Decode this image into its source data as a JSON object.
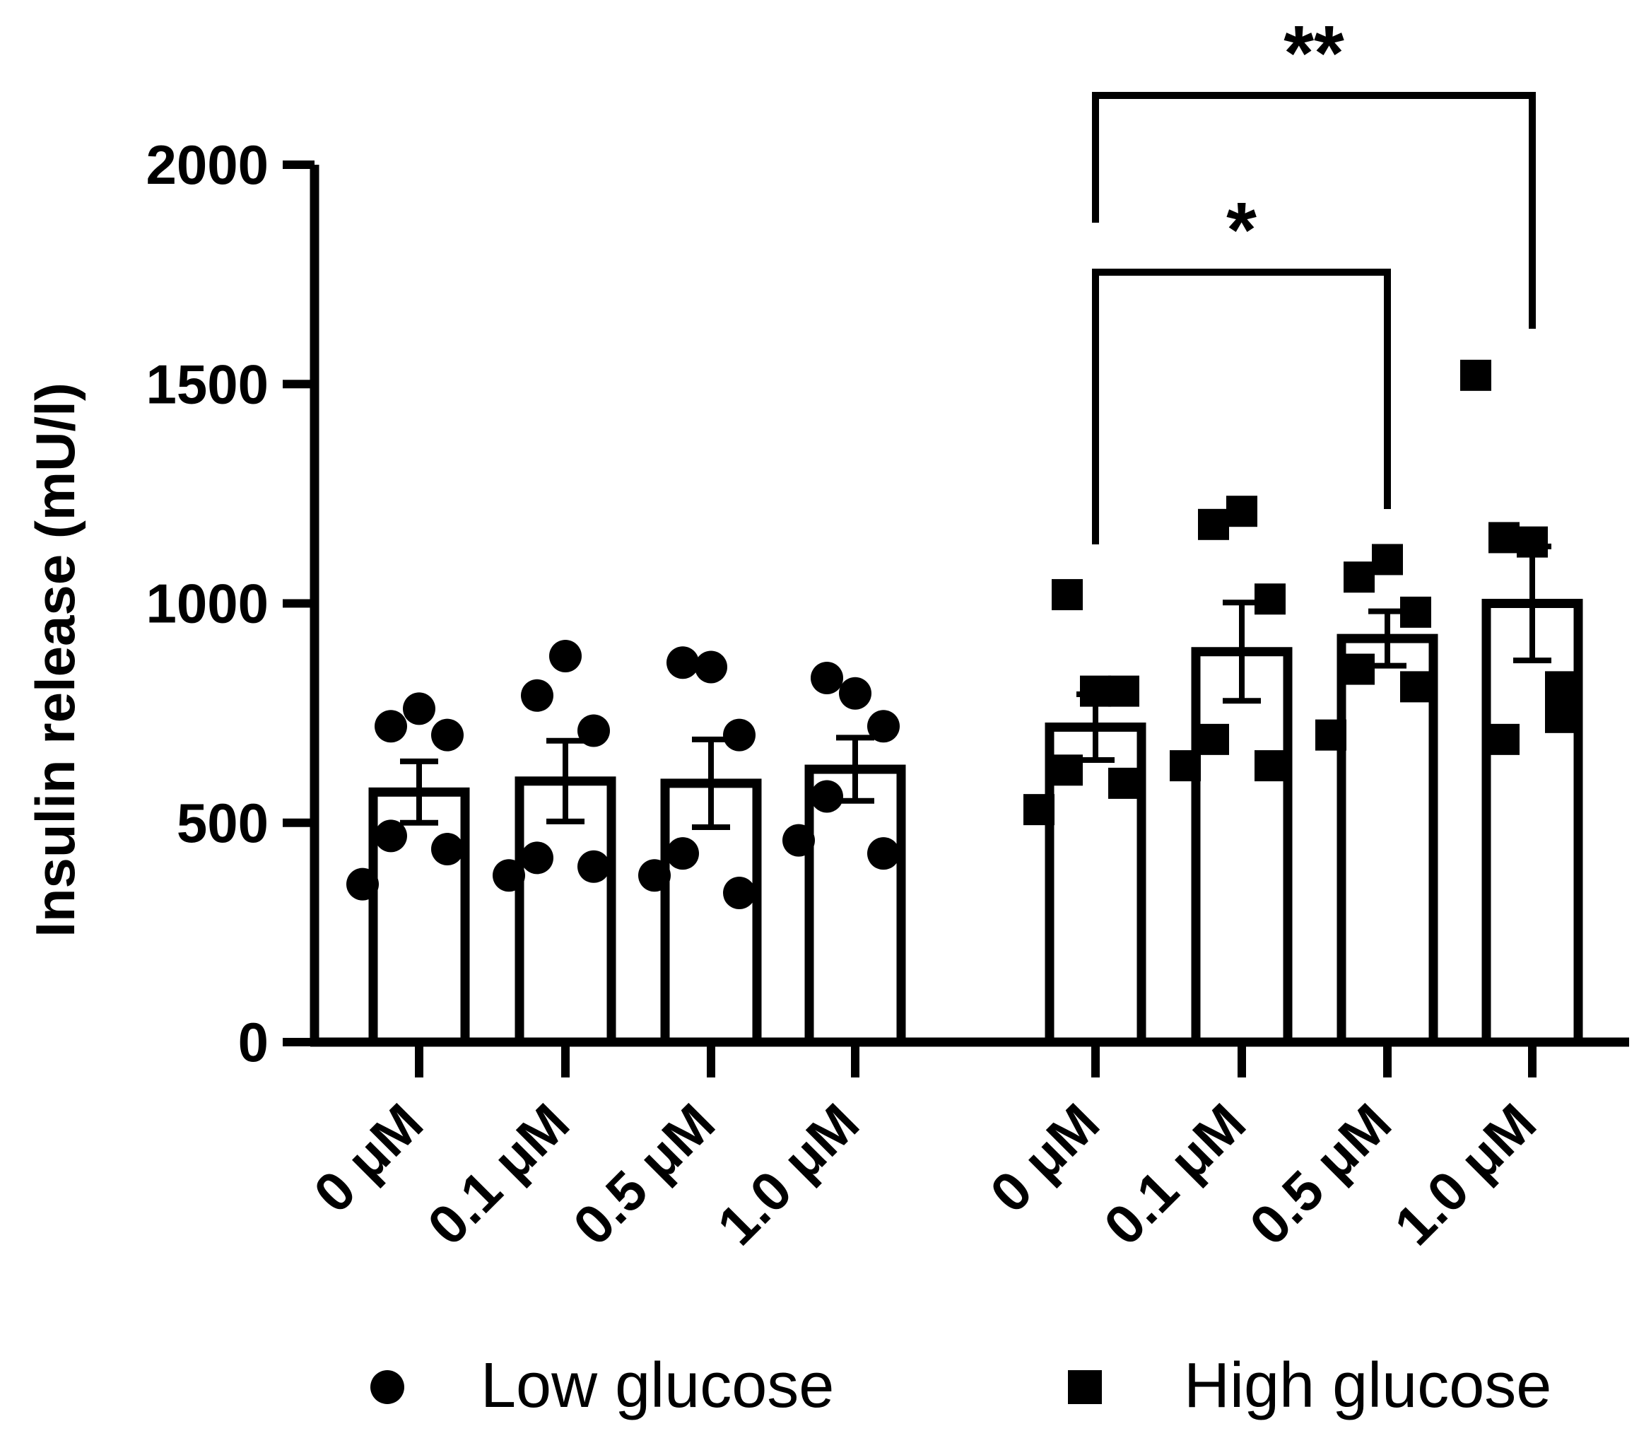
{
  "chart_data": {
    "type": "bar",
    "title": "",
    "xlabel": "",
    "ylabel": "Insulin release (mU/l)",
    "ylim": [
      0,
      2000
    ],
    "yticks": [
      0,
      500,
      1000,
      1500,
      2000
    ],
    "categories": [
      "0 μM",
      "0.1 μM",
      "0.5 μM",
      "1.0 μM"
    ],
    "legend": {
      "position": "bottom"
    },
    "series": [
      {
        "name": "Low glucose",
        "marker": "circle",
        "color": "#000000",
        "means": [
          570,
          595,
          590,
          622
        ],
        "sem": [
          70,
          92,
          100,
          72
        ],
        "points": [
          [
            720,
            760,
            700,
            470,
            440,
            360
          ],
          [
            790,
            880,
            710,
            420,
            400,
            380
          ],
          [
            865,
            855,
            700,
            430,
            340,
            380
          ],
          [
            830,
            795,
            720,
            560,
            430,
            460
          ]
        ]
      },
      {
        "name": "High glucose",
        "marker": "square",
        "color": "#000000",
        "means": [
          718,
          890,
          920,
          1000
        ],
        "sem": [
          75,
          112,
          62,
          130
        ],
        "points": [
          [
            1020,
            800,
            800,
            620,
            590,
            530
          ],
          [
            1180,
            1210,
            1010,
            690,
            630,
            630
          ],
          [
            1060,
            1100,
            980,
            850,
            810,
            700
          ],
          [
            1150,
            1140,
            810,
            690,
            740,
            1520
          ]
        ]
      }
    ],
    "significance": [
      {
        "series": "High glucose",
        "from": "0 μM",
        "to": "0.5 μM",
        "label": "*"
      },
      {
        "series": "High glucose",
        "from": "0 μM",
        "to": "1.0 μM",
        "label": "**"
      }
    ]
  }
}
